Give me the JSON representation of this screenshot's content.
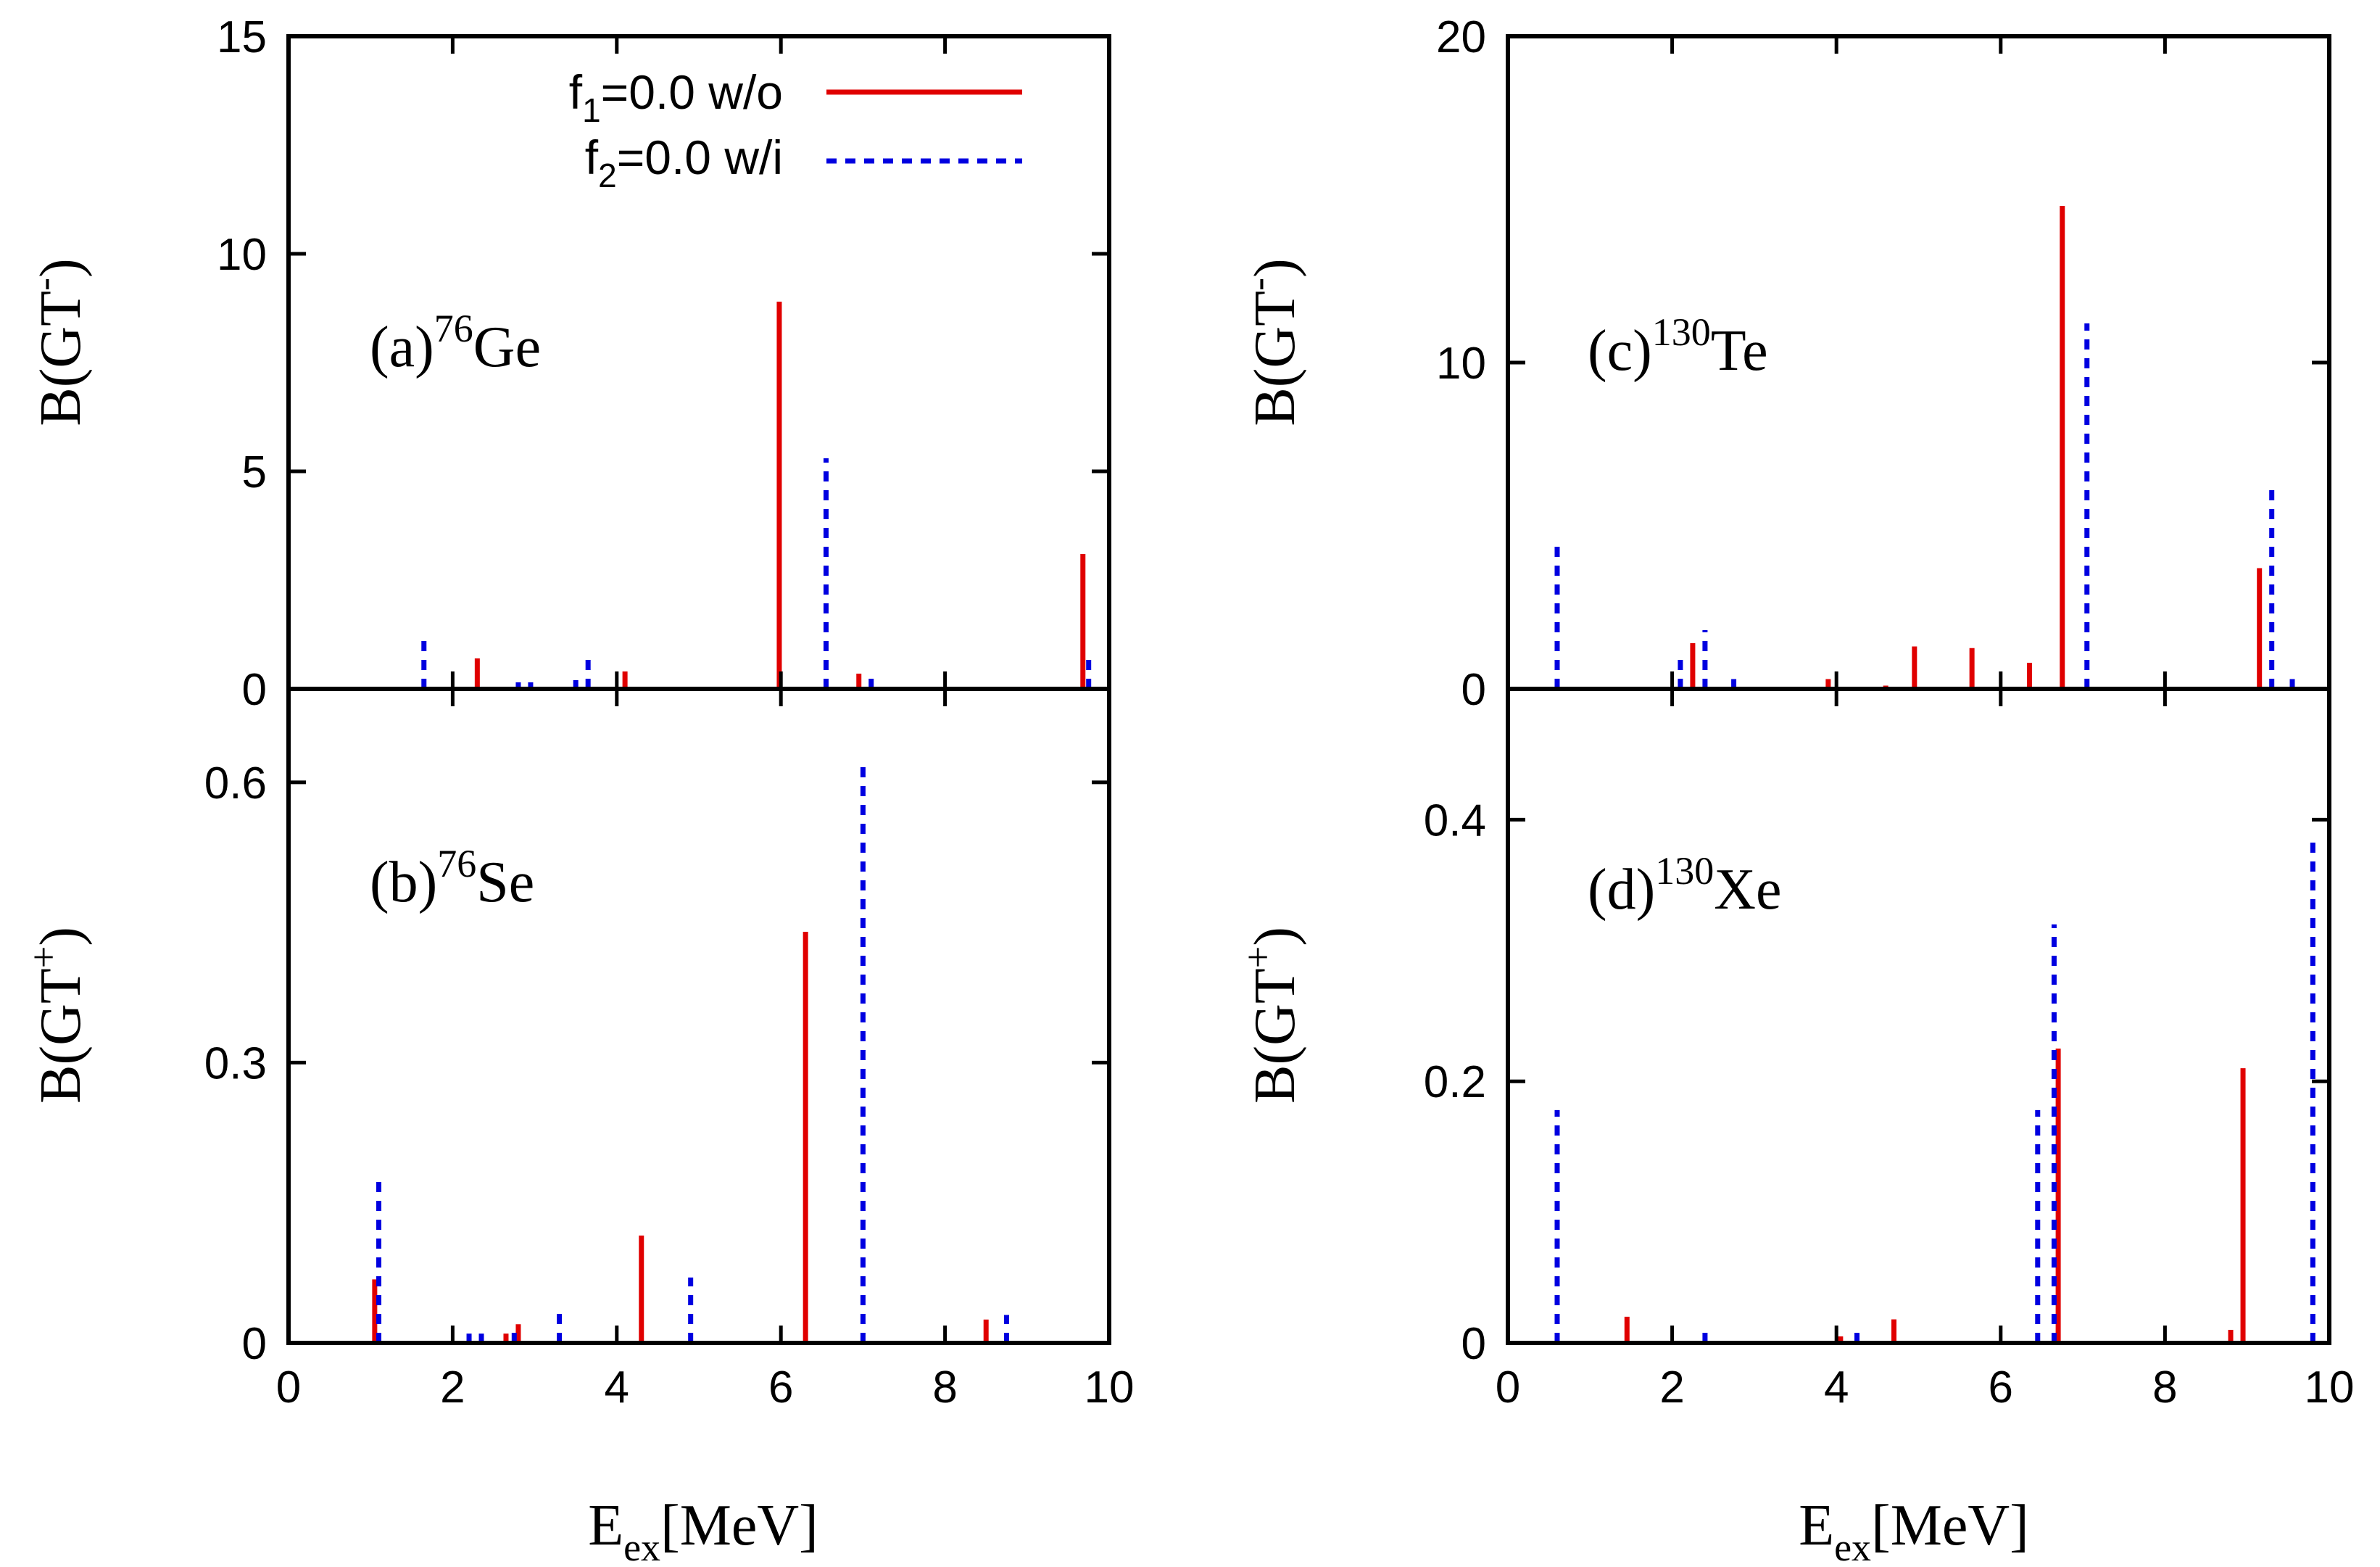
{
  "legend": {
    "items": [
      {
        "sym": "f",
        "sub": "1",
        "rest": "=0.0 w/o",
        "color": "#e00000",
        "style": "solid"
      },
      {
        "sym": "f",
        "sub": "2",
        "rest": "=0.0  w/i",
        "color": "#0000e0",
        "style": "dashed"
      }
    ]
  },
  "colors": {
    "wo": "#e00000",
    "wi": "#0000e0"
  },
  "chart_data": [
    {
      "id": "a",
      "type": "bar",
      "panel_prefix": "(a)",
      "mass_number": "76",
      "element": "Ge",
      "ylabel_main": "B(GT",
      "ylabel_sup": "-",
      "ylabel_close": ")",
      "xlim": [
        0,
        10
      ],
      "ylim": [
        0,
        15
      ],
      "yticks": [
        0,
        5,
        10,
        15
      ],
      "ytick_labels": [
        "0",
        "5",
        "10",
        "15"
      ],
      "xticks": [
        0,
        2,
        4,
        6,
        8,
        10
      ],
      "series": [
        {
          "name": "f1=0.0 w/o",
          "x": [
            2.3,
            4.1,
            5.98,
            6.95,
            9.68
          ],
          "y": [
            0.7,
            0.4,
            8.9,
            0.35,
            3.1
          ]
        },
        {
          "name": "f2=0.0 w/i",
          "x": [
            1.65,
            2.8,
            2.95,
            3.5,
            3.65,
            6.55,
            7.1,
            9.75
          ],
          "y": [
            1.2,
            0.15,
            0.15,
            0.2,
            0.8,
            5.3,
            0.25,
            0.8
          ]
        }
      ]
    },
    {
      "id": "b",
      "type": "bar",
      "panel_prefix": "(b)",
      "mass_number": "76",
      "element": "Se",
      "ylabel_main": "B(GT",
      "ylabel_sup": "+",
      "ylabel_close": ")",
      "xlim": [
        0,
        10
      ],
      "ylim": [
        0,
        0.7
      ],
      "yticks": [
        0,
        0.3,
        0.6
      ],
      "ytick_labels": [
        "0",
        "0.3",
        "0.6"
      ],
      "xticks": [
        0,
        2,
        4,
        6,
        8,
        10
      ],
      "xtick_labels": [
        "0",
        "2",
        "4",
        "6",
        "8",
        "10"
      ],
      "xlabel_main": "E",
      "xlabel_sub": "ex",
      "xlabel_rest": "[MeV]",
      "series": [
        {
          "name": "f1=0.0 w/o",
          "x": [
            1.05,
            2.65,
            2.8,
            4.3,
            6.3,
            8.5
          ],
          "y": [
            0.068,
            0.01,
            0.02,
            0.115,
            0.44,
            0.025
          ]
        },
        {
          "name": "f2=0.0 w/i",
          "x": [
            1.1,
            2.2,
            2.35,
            2.75,
            3.3,
            4.9,
            7.0,
            8.75
          ],
          "y": [
            0.175,
            0.01,
            0.01,
            0.015,
            0.04,
            0.07,
            0.625,
            0.03
          ]
        }
      ]
    },
    {
      "id": "c",
      "type": "bar",
      "panel_prefix": "(c)",
      "mass_number": "130",
      "element": "Te",
      "ylabel_main": "B(GT",
      "ylabel_sup": "-",
      "ylabel_close": ")",
      "xlim": [
        0,
        10
      ],
      "ylim": [
        0,
        20
      ],
      "yticks": [
        0,
        10,
        20
      ],
      "ytick_labels": [
        "0",
        "10",
        "20"
      ],
      "xticks": [
        0,
        2,
        4,
        6,
        8,
        10
      ],
      "series": [
        {
          "name": "f1=0.0 w/o",
          "x": [
            2.25,
            3.9,
            4.6,
            4.95,
            5.65,
            6.35,
            6.75,
            9.15
          ],
          "y": [
            1.4,
            0.3,
            0.1,
            1.3,
            1.25,
            0.8,
            14.8,
            3.7
          ]
        },
        {
          "name": "f2=0.0 w/i",
          "x": [
            0.6,
            2.1,
            2.4,
            2.75,
            7.05,
            9.3,
            9.55
          ],
          "y": [
            4.4,
            1.0,
            1.8,
            0.3,
            11.2,
            6.1,
            0.3
          ]
        }
      ]
    },
    {
      "id": "d",
      "type": "bar",
      "panel_prefix": "(d)",
      "mass_number": "130",
      "element": "Xe",
      "ylabel_main": "B(GT",
      "ylabel_sup": "+",
      "ylabel_close": ")",
      "xlim": [
        0,
        10
      ],
      "ylim": [
        0,
        0.5
      ],
      "yticks": [
        0,
        0.2,
        0.4
      ],
      "ytick_labels": [
        "0",
        "0.2",
        "0.4"
      ],
      "xticks": [
        0,
        2,
        4,
        6,
        8,
        10
      ],
      "xtick_labels": [
        "0",
        "2",
        "4",
        "6",
        "8",
        "10"
      ],
      "xlabel_main": "E",
      "xlabel_sub": "ex",
      "xlabel_rest": "[MeV]",
      "series": [
        {
          "name": "f1=0.0 w/o",
          "x": [
            1.45,
            4.05,
            4.7,
            6.7,
            8.8,
            8.95
          ],
          "y": [
            0.02,
            0.005,
            0.018,
            0.225,
            0.01,
            0.21
          ]
        },
        {
          "name": "f2=0.0 w/i",
          "x": [
            0.6,
            2.4,
            4.25,
            6.45,
            6.65,
            9.8
          ],
          "y": [
            0.178,
            0.008,
            0.008,
            0.178,
            0.32,
            0.385
          ]
        }
      ]
    }
  ]
}
